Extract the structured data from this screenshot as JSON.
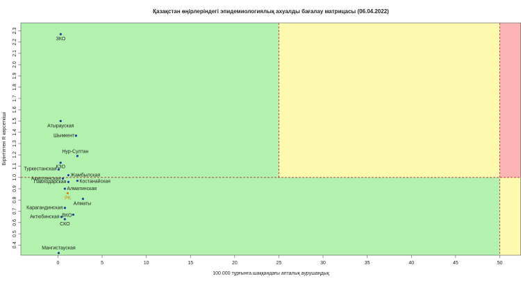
{
  "chart_data": {
    "type": "scatter",
    "title": "Қазақстан өңірлеріндегі эпидемиологиялық ахуалды бағалау матрицасы  (06.04.2022)",
    "x_label": "100 000 тұрғынға шаққандағы апталық аурушаңдық",
    "y_label": "Бірінтіптен R көрсеткіші",
    "xlim": [
      -4.2,
      52.4
    ],
    "ylim": [
      0.31,
      2.37
    ],
    "xticks": [
      0,
      5,
      10,
      15,
      20,
      25,
      30,
      35,
      40,
      45,
      50
    ],
    "yticks": [
      0.4,
      0.5,
      0.6,
      0.7,
      0.8,
      0.9,
      {
        "value": 1,
        "label": "1.0"
      },
      1.1,
      1.2,
      1.3,
      1.4,
      1.5,
      1.6,
      1.7,
      1.8,
      1.9,
      {
        "value": 2,
        "label": "2.0"
      },
      2.1,
      2.2,
      2.3
    ],
    "thresholds": {
      "x": [
        25,
        50
      ],
      "y": 1
    },
    "zone_colors": {
      "green": "#b2f2ae",
      "yellow": "#fdf9ae",
      "red": "#fdb4b4"
    },
    "threshold_color": "#b03030",
    "points": [
      {
        "label": "ЗКО",
        "x": 0.31,
        "y": 2.27,
        "color": "#1f3fa0"
      },
      {
        "label": "Атырауская",
        "x": 0.3,
        "y": 1.5,
        "color": "#1f3fa0"
      },
      {
        "label": "Шымкент",
        "x": 2.04,
        "y": 1.37,
        "color": "#1f3fa0"
      },
      {
        "label": "Нур-Султан",
        "x": 2.2,
        "y": 1.19,
        "color": "#1f3fa0"
      },
      {
        "label": "КЗО",
        "x": 0.3,
        "y": 1.13,
        "color": "#1f3fa0"
      },
      {
        "label": "Туркестанская",
        "x": 0.08,
        "y": 1.07,
        "color": "#1f3fa0"
      },
      {
        "label": "Жамбылская",
        "x": 1.18,
        "y": 1.02,
        "color": "#1f3fa0"
      },
      {
        "label": "Акмолинская",
        "x": 0.55,
        "y": 0.99,
        "color": "#1f3fa0"
      },
      {
        "label": "Костанайская",
        "x": 2.2,
        "y": 0.97,
        "color": "#1f3fa0"
      },
      {
        "label": "Павлодарская",
        "x": 1.18,
        "y": 0.96,
        "color": "#1f3fa0"
      },
      {
        "label": "Алматинская",
        "x": 0.78,
        "y": 0.9,
        "color": "#1f3fa0"
      },
      {
        "label": "РК",
        "x": 1.1,
        "y": 0.86,
        "color": "#e07b00"
      },
      {
        "label": "Алматы",
        "x": 2.83,
        "y": 0.81,
        "color": "#1f3fa0"
      },
      {
        "label": "Карагандинская",
        "x": 0.78,
        "y": 0.73,
        "color": "#1f3fa0"
      },
      {
        "label": "ВКО",
        "x": 1.73,
        "y": 0.67,
        "color": "#1f3fa0"
      },
      {
        "label": "Актюбинская",
        "x": 0.4,
        "y": 0.65,
        "color": "#1f3fa0"
      },
      {
        "label": "СКО",
        "x": 0.78,
        "y": 0.63,
        "color": "#1f3fa0"
      },
      {
        "label": "Мангистауская",
        "x": 0.08,
        "y": 0.33,
        "color": "#1f3fa0"
      }
    ]
  }
}
